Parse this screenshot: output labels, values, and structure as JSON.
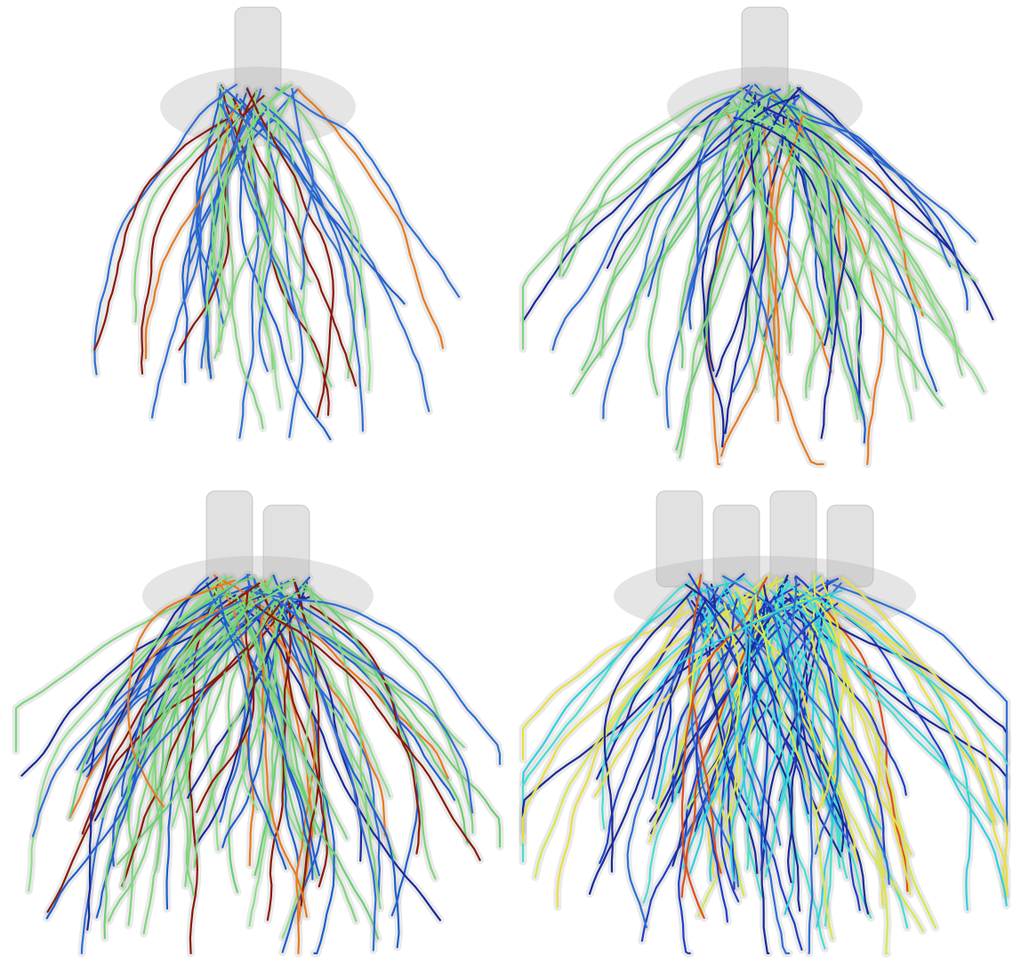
{
  "figure": {
    "panels": [
      {
        "id": "a",
        "stems": 1,
        "roots": 46,
        "seed": 11,
        "spread": 0.78,
        "depth": 0.88,
        "palette": [
          "#2f6fd6",
          "#2f6fd6",
          "#1f5fcf",
          "#7fd67a",
          "#8ee08a",
          "#e87a1f",
          "#8b1a0a"
        ]
      },
      {
        "id": "b",
        "stems": 1,
        "roots": 70,
        "seed": 27,
        "spread": 1.0,
        "depth": 0.95,
        "palette": [
          "#2f6fd6",
          "#1f5fcf",
          "#7fd67a",
          "#8ee08a",
          "#6ccf73",
          "#e87a1f",
          "#1a2a9a"
        ]
      },
      {
        "id": "c",
        "stems": 2,
        "roots": 95,
        "seed": 53,
        "spread": 1.0,
        "depth": 1.0,
        "palette": [
          "#2f6fd6",
          "#1f5fcf",
          "#1a2a9a",
          "#7fd67a",
          "#8ee08a",
          "#6ccf73",
          "#e87a1f",
          "#8b1a0a"
        ]
      },
      {
        "id": "d",
        "stems": 4,
        "roots": 110,
        "seed": 91,
        "spread": 0.95,
        "depth": 0.98,
        "palette": [
          "#1a2a9a",
          "#2040c8",
          "#2f6fd6",
          "#2fd0e0",
          "#45e0d0",
          "#d8e84a",
          "#e8e040",
          "#e0501a"
        ]
      }
    ],
    "colors": {
      "background": "#ffffff",
      "shadow": "#b4b4b4",
      "stem": "#c8c8c8"
    }
  }
}
